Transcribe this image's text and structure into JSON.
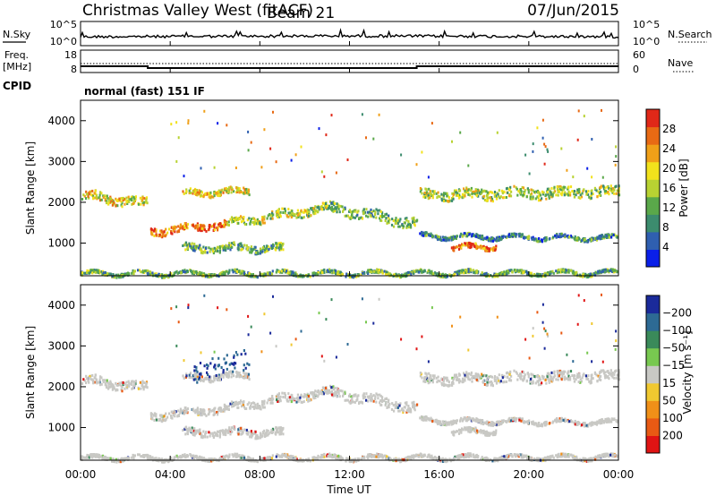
{
  "header": {
    "title": "Christmas Valley West (fitACF)",
    "beam": "Beam 21",
    "date": "07/Jun/2015"
  },
  "colors": {
    "scatter_gray": "#c8c8c4",
    "power_scale": [
      "#0a1fe8",
      "#2f5fb0",
      "#3c8c6e",
      "#5aa84a",
      "#b8d232",
      "#f2e21c",
      "#f0a018",
      "#e86a14",
      "#e02818"
    ],
    "velocity_scale": [
      "#1a2a9a",
      "#2d6a94",
      "#3a8a5a",
      "#78c850",
      "#c8c8c4",
      "#f0c830",
      "#f09018",
      "#e85a14",
      "#e01414"
    ]
  },
  "chart_data": [
    {
      "type": "line",
      "panel": "nsky-nsearch",
      "ylabel_left": "N.Sky",
      "ylabel_right": "N.Search",
      "yticks_left": [
        "10^5",
        "10^0"
      ],
      "yticks_right": [
        "10^5",
        "10^0"
      ],
      "x_ticks": [
        "00:00",
        "04:00",
        "08:00",
        "12:00",
        "16:00",
        "20:00",
        "00:00"
      ]
    },
    {
      "type": "line",
      "panel": "freq-nave",
      "ylabel_left": "Freq. [MHz]",
      "ylabel_right": "Nave",
      "yticks_left": [
        "18",
        "8"
      ],
      "yticks_right": [
        "60",
        "0"
      ],
      "series": [
        {
          "values_hours": [
            0,
            3,
            3,
            15,
            15,
            24
          ],
          "values_mhz": [
            10.8,
            10.8,
            10.0,
            10.0,
            10.8,
            10.8
          ]
        }
      ]
    },
    {
      "type": "heatmap",
      "panel": "cpid",
      "label": "CPID",
      "text": "normal (fast) 151 IF"
    },
    {
      "type": "heatmap",
      "panel": "power",
      "xlabel": "",
      "ylabel": "Slant Range [km]",
      "yticks": [
        1000,
        2000,
        3000,
        4000
      ],
      "ylim": [
        200,
        4500
      ],
      "xlim_hours": [
        0,
        24
      ],
      "colorbar_label": "Power [dB]",
      "colorbar_ticks": [
        4,
        8,
        12,
        16,
        20,
        24,
        28
      ]
    },
    {
      "type": "heatmap",
      "panel": "velocity",
      "xlabel": "Time UT",
      "ylabel": "Slant Range [km]",
      "yticks": [
        1000,
        2000,
        3000,
        4000
      ],
      "ylim": [
        200,
        4500
      ],
      "xlim_hours": [
        0,
        24
      ],
      "x_ticks": [
        "00:00",
        "04:00",
        "08:00",
        "12:00",
        "16:00",
        "20:00",
        "00:00"
      ],
      "colorbar_label": "Velocity [m s⁻¹]",
      "colorbar_ticks": [
        "200",
        "100",
        "50",
        "15",
        "−15",
        "−50",
        "−100",
        "−200"
      ]
    }
  ]
}
